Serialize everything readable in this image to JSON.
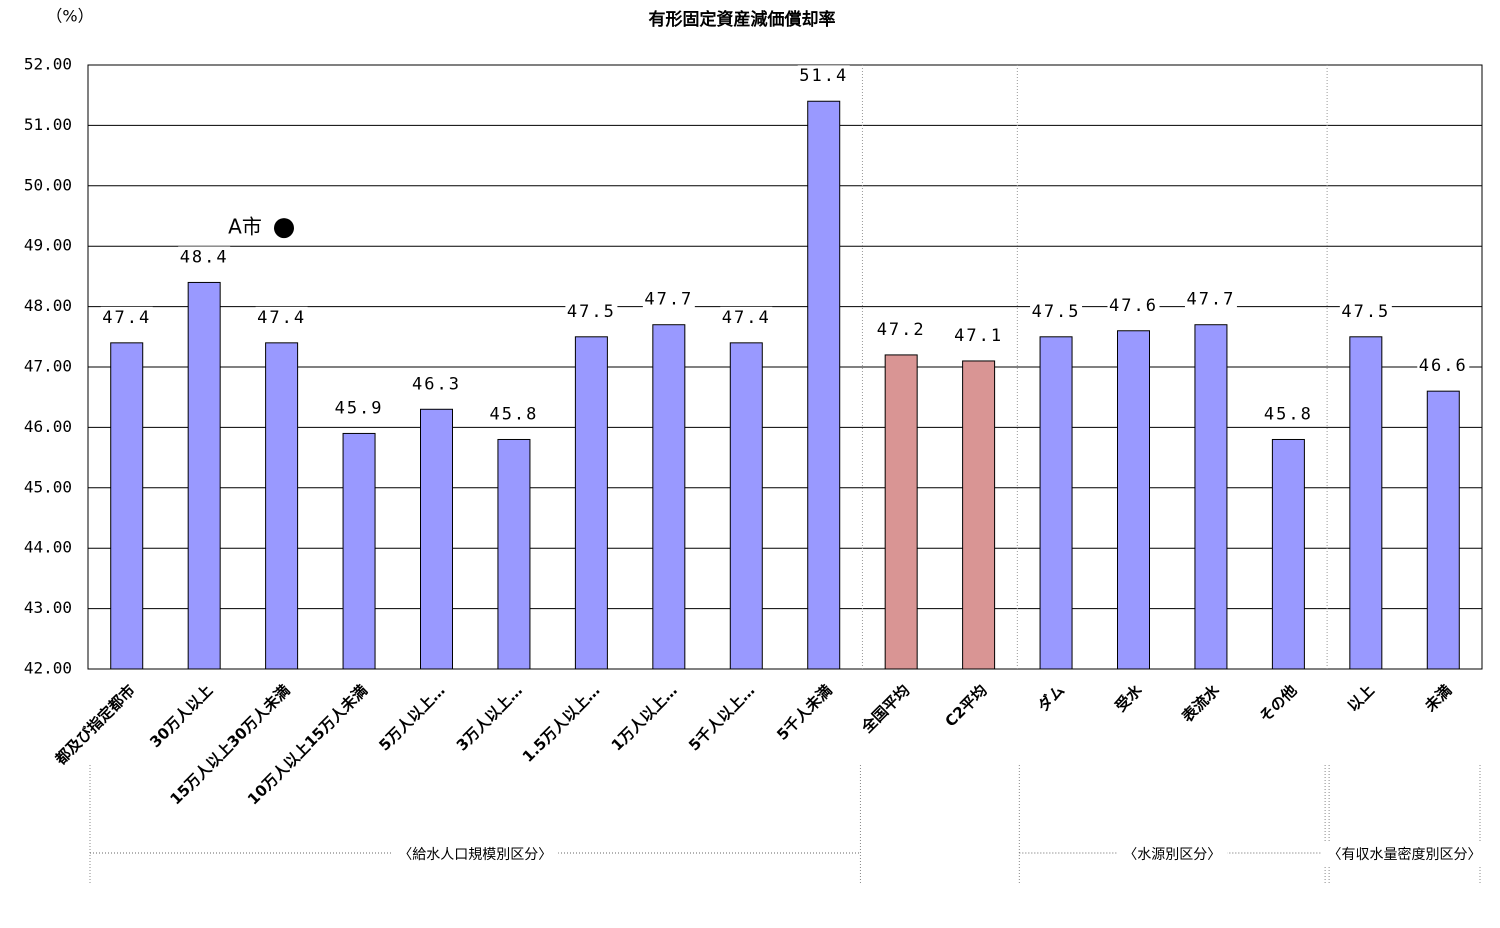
{
  "chart_data": {
    "type": "bar",
    "title": "有形固定資産減価償却率",
    "y_unit": "（%）",
    "categories": [
      "都及び指定都市",
      "30万人以上",
      "15万人以上30万人未満",
      "10万人以上15万人未満",
      "5万人以上…",
      "3万人以上…",
      "1.5万人以上…",
      "1万人以上…",
      "5千人以上…",
      "5千人未満",
      "全国平均",
      "C2平均",
      "ダム",
      "受水",
      "表流水",
      "その他",
      "以上",
      "未満"
    ],
    "values": [
      47.4,
      48.4,
      47.4,
      45.9,
      46.3,
      45.8,
      47.5,
      47.7,
      47.4,
      51.4,
      47.2,
      47.1,
      47.5,
      47.6,
      47.7,
      45.8,
      47.5,
      46.6
    ],
    "colors": [
      "#9999ff",
      "#9999ff",
      "#9999ff",
      "#9999ff",
      "#9999ff",
      "#9999ff",
      "#9999ff",
      "#9999ff",
      "#9999ff",
      "#9999ff",
      "#d99594",
      "#d99594",
      "#9999ff",
      "#9999ff",
      "#9999ff",
      "#9999ff",
      "#9999ff",
      "#9999ff"
    ],
    "ylim": [
      42,
      52
    ],
    "yticks": [
      {
        "value": 42,
        "label": "42.00"
      },
      {
        "value": 43,
        "label": "43.00"
      },
      {
        "value": 44,
        "label": "44.00"
      },
      {
        "value": 45,
        "label": "45.00"
      },
      {
        "value": 46,
        "label": "46.00"
      },
      {
        "value": 47,
        "label": "47.00"
      },
      {
        "value": 48,
        "label": "48.00"
      },
      {
        "value": 49,
        "label": "49.00"
      },
      {
        "value": 50,
        "label": "50.00"
      },
      {
        "value": 51,
        "label": "51.00"
      },
      {
        "value": 52,
        "label": "52.00"
      }
    ],
    "grid": true,
    "annotation": {
      "text": "A市",
      "value": 49.3
    },
    "groups": [
      "〈給水人口規模別区分〉",
      "〈水源別区分〉",
      "〈有収水量密度別区分〉"
    ]
  }
}
